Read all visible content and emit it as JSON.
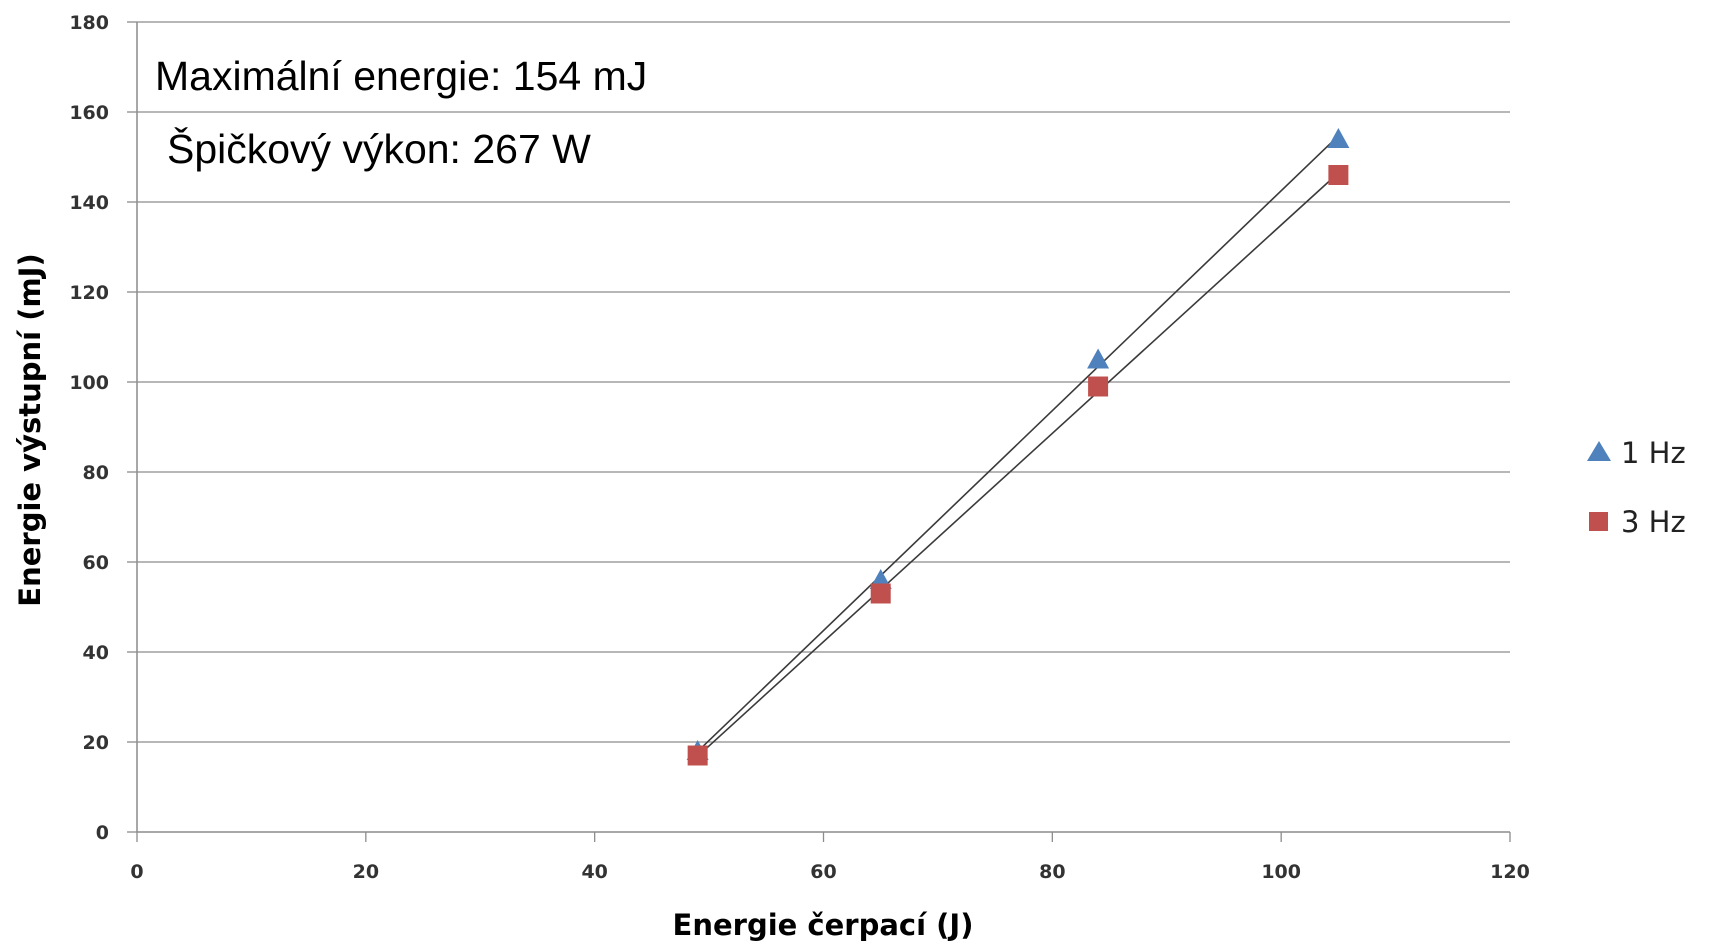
{
  "chart_data": {
    "type": "scatter",
    "title": "",
    "xlabel": "Energie čerpací (J)",
    "ylabel": "Energie výstupní (mJ)",
    "xlim": [
      0,
      120
    ],
    "ylim": [
      0,
      180
    ],
    "xticks": [
      0,
      20,
      40,
      60,
      80,
      100,
      120
    ],
    "yticks": [
      0,
      20,
      40,
      60,
      80,
      100,
      120,
      140,
      160,
      180
    ],
    "grid": "horizontal",
    "legend_position": "right",
    "annotations": [
      "Maximální energie: 154 mJ",
      "Špičkový výkon: 267 W"
    ],
    "series": [
      {
        "name": "1 Hz",
        "marker": "triangle",
        "color": "#4F81BD",
        "trendline": "linear",
        "x": [
          49,
          65,
          84,
          105
        ],
        "y": [
          18,
          56,
          105,
          154
        ]
      },
      {
        "name": "3 Hz",
        "marker": "square",
        "color": "#C0504D",
        "trendline": "linear",
        "x": [
          49,
          65,
          84,
          105
        ],
        "y": [
          17,
          53,
          99,
          146
        ]
      }
    ]
  }
}
